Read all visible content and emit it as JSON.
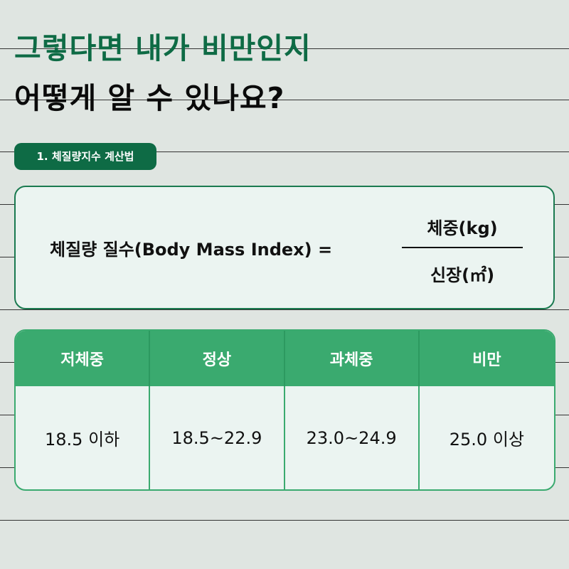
{
  "heading": {
    "line1": "그렇다면 내가 비만인지",
    "line2": "어떻게 알 수 있나요?"
  },
  "badge": {
    "label": "1. 체질량지수 계산법"
  },
  "formula": {
    "lhs": "체질량 질수(Body Mass Index) =",
    "numerator": "체중(kg)",
    "denominator": "신장(㎡)"
  },
  "bmi_table": {
    "headers": [
      "저체중",
      "정상",
      "과체중",
      "비만"
    ],
    "values": [
      "18.5 이하",
      "18.5~22.9",
      "23.0~24.9",
      "25.0 이상"
    ]
  },
  "colors": {
    "background": "#dfe5e1",
    "accent_dark_green": "#0e6b45",
    "table_header_green": "#3aaa6f",
    "card_background": "#ebf4f1"
  }
}
